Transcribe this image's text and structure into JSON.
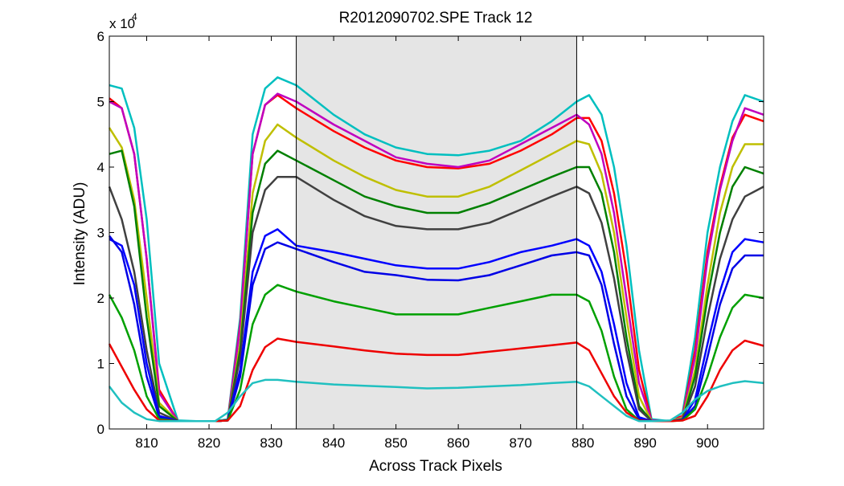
{
  "chart_data": {
    "type": "line",
    "title": "R2012090702.SPE   Track 12",
    "xlabel": "Across Track Pixels",
    "ylabel": "Intensity (ADU)",
    "y_multiplier_label": "x 10",
    "y_multiplier_exponent": "4",
    "xlim": [
      804,
      909
    ],
    "ylim": [
      0,
      60000
    ],
    "xticks": [
      810,
      820,
      830,
      840,
      850,
      860,
      870,
      880,
      890,
      900
    ],
    "yticks": [
      0,
      10000,
      20000,
      30000,
      40000,
      50000,
      60000
    ],
    "ytick_labels": [
      "0",
      "1",
      "2",
      "3",
      "4",
      "5",
      "6"
    ],
    "shaded_region": {
      "x_start": 834,
      "x_end": 879,
      "color": "#e5e5e5"
    },
    "grid": false,
    "legend": "none",
    "series": [
      {
        "color": "#00bfbf",
        "x": [
          804,
          806,
          808,
          810,
          812,
          815,
          818,
          821,
          823,
          825,
          827,
          829,
          831,
          834,
          840,
          845,
          850,
          855,
          860,
          865,
          870,
          875,
          879,
          881,
          883,
          885,
          887,
          889,
          891,
          894,
          896,
          898,
          900,
          902,
          904,
          906,
          909
        ],
        "y": [
          52500,
          52000,
          46000,
          32000,
          10000,
          1300,
          1200,
          1200,
          1500,
          17000,
          45000,
          52000,
          53700,
          52500,
          48000,
          45000,
          43000,
          42000,
          41800,
          42500,
          44000,
          47000,
          50000,
          51000,
          48000,
          40000,
          28000,
          12000,
          1500,
          1200,
          2500,
          14000,
          30000,
          40000,
          47000,
          51000,
          50000
        ]
      },
      {
        "color": "#ff0000",
        "x": [
          804,
          806,
          808,
          810,
          812,
          815,
          818,
          821,
          823,
          825,
          827,
          829,
          831,
          834,
          840,
          845,
          850,
          855,
          860,
          865,
          870,
          875,
          879,
          881,
          883,
          885,
          887,
          889,
          891,
          894,
          896,
          898,
          900,
          902,
          904,
          906,
          909
        ],
        "y": [
          50500,
          49000,
          42000,
          26000,
          6000,
          1200,
          1200,
          1200,
          1300,
          16000,
          42000,
          49500,
          51000,
          49000,
          45500,
          43000,
          41000,
          40000,
          39800,
          40500,
          42500,
          45000,
          47500,
          47500,
          44000,
          36000,
          24000,
          9000,
          1300,
          1200,
          2000,
          12000,
          27000,
          37000,
          44500,
          48000,
          47000
        ]
      },
      {
        "color": "#bf00bf",
        "x": [
          804,
          806,
          808,
          810,
          812,
          815,
          818,
          821,
          823,
          825,
          827,
          829,
          831,
          834,
          840,
          845,
          850,
          855,
          860,
          865,
          870,
          875,
          879,
          881,
          883,
          885,
          887,
          889,
          891,
          894,
          896,
          898,
          900,
          902,
          904,
          906,
          909
        ],
        "y": [
          50000,
          49000,
          42000,
          26000,
          5500,
          1200,
          1200,
          1200,
          1300,
          15500,
          42000,
          49500,
          51200,
          50000,
          46500,
          44000,
          41500,
          40500,
          40000,
          41000,
          43500,
          46000,
          48000,
          46500,
          42000,
          33000,
          20000,
          7000,
          1300,
          1200,
          1800,
          11000,
          26000,
          36500,
          44000,
          49000,
          48000
        ]
      },
      {
        "color": "#bfbf00",
        "x": [
          804,
          806,
          808,
          810,
          812,
          815,
          818,
          821,
          823,
          825,
          827,
          829,
          831,
          834,
          840,
          845,
          850,
          855,
          860,
          865,
          870,
          875,
          879,
          881,
          883,
          885,
          887,
          889,
          891,
          894,
          896,
          898,
          900,
          902,
          904,
          906,
          909
        ],
        "y": [
          46000,
          43000,
          35000,
          20000,
          4000,
          1200,
          1200,
          1200,
          1300,
          13000,
          36000,
          44000,
          46500,
          44500,
          41000,
          38500,
          36500,
          35500,
          35500,
          37000,
          39500,
          42000,
          44000,
          43500,
          39000,
          30000,
          17000,
          5000,
          1200,
          1200,
          1700,
          9000,
          22000,
          33000,
          40000,
          43500,
          43500
        ]
      },
      {
        "color": "#008000",
        "x": [
          804,
          806,
          808,
          810,
          812,
          815,
          818,
          821,
          823,
          825,
          827,
          829,
          831,
          834,
          840,
          845,
          850,
          855,
          860,
          865,
          870,
          875,
          879,
          881,
          883,
          885,
          887,
          889,
          891,
          894,
          896,
          898,
          900,
          902,
          904,
          906,
          909
        ],
        "y": [
          42000,
          42500,
          34000,
          17000,
          3500,
          1200,
          1200,
          1200,
          1300,
          12000,
          33000,
          40500,
          42500,
          41000,
          38000,
          35500,
          34000,
          33000,
          33000,
          34500,
          36500,
          38500,
          40000,
          40000,
          36000,
          27000,
          14000,
          3500,
          1200,
          1200,
          1500,
          8000,
          20000,
          30000,
          37000,
          40000,
          39000
        ]
      },
      {
        "color": "#404040",
        "x": [
          804,
          806,
          808,
          810,
          812,
          815,
          818,
          821,
          823,
          825,
          827,
          829,
          831,
          834,
          840,
          845,
          850,
          855,
          860,
          865,
          870,
          875,
          879,
          881,
          883,
          885,
          887,
          889,
          891,
          894,
          896,
          898,
          900,
          902,
          904,
          906,
          909
        ],
        "y": [
          37000,
          32000,
          24000,
          12000,
          2500,
          1200,
          1200,
          1200,
          1300,
          11000,
          30000,
          36500,
          38500,
          38500,
          35000,
          32500,
          31000,
          30500,
          30500,
          31500,
          33500,
          35500,
          37000,
          36000,
          31500,
          23000,
          12000,
          3000,
          1200,
          1200,
          1500,
          6500,
          17000,
          26000,
          32000,
          35500,
          37000
        ]
      },
      {
        "color": "#0000ff",
        "x": [
          804,
          806,
          808,
          810,
          812,
          815,
          818,
          821,
          823,
          825,
          827,
          829,
          831,
          834,
          840,
          845,
          850,
          855,
          860,
          865,
          870,
          875,
          879,
          881,
          883,
          885,
          887,
          889,
          891,
          894,
          896,
          898,
          900,
          902,
          904,
          906,
          909
        ],
        "y": [
          29000,
          28000,
          22000,
          10000,
          2000,
          1200,
          1200,
          1200,
          1300,
          9000,
          24000,
          29500,
          30500,
          28000,
          27000,
          26000,
          25000,
          24500,
          24500,
          25500,
          27000,
          28000,
          29000,
          28000,
          24000,
          16000,
          7000,
          1800,
          1200,
          1200,
          1400,
          4500,
          13000,
          21000,
          27000,
          29000,
          28500
        ]
      },
      {
        "color": "#0000e6",
        "x": [
          804,
          806,
          808,
          810,
          812,
          815,
          818,
          821,
          823,
          825,
          827,
          829,
          831,
          834,
          840,
          845,
          850,
          855,
          860,
          865,
          870,
          875,
          879,
          881,
          883,
          885,
          887,
          889,
          891,
          894,
          896,
          898,
          900,
          902,
          904,
          906,
          909
        ],
        "y": [
          29500,
          27000,
          19000,
          8000,
          1800,
          1200,
          1200,
          1200,
          1300,
          8000,
          22000,
          27500,
          28500,
          27500,
          25500,
          24000,
          23500,
          22800,
          22700,
          23500,
          25000,
          26500,
          27000,
          26500,
          22000,
          13000,
          5000,
          1500,
          1200,
          1200,
          1400,
          3500,
          11000,
          19000,
          24500,
          26500,
          26500
        ]
      },
      {
        "color": "#00a000",
        "x": [
          804,
          806,
          808,
          810,
          812,
          815,
          818,
          821,
          823,
          825,
          827,
          829,
          831,
          834,
          840,
          845,
          850,
          855,
          860,
          865,
          870,
          875,
          879,
          881,
          883,
          885,
          887,
          889,
          891,
          894,
          896,
          898,
          900,
          902,
          904,
          906,
          909
        ],
        "y": [
          20500,
          17000,
          12000,
          5000,
          1500,
          1200,
          1200,
          1200,
          1300,
          6000,
          16000,
          20500,
          22000,
          21000,
          19500,
          18500,
          17500,
          17500,
          17500,
          18500,
          19500,
          20500,
          20500,
          19500,
          15000,
          8000,
          3000,
          1300,
          1200,
          1200,
          1300,
          3000,
          8000,
          14000,
          18500,
          20500,
          20000
        ]
      },
      {
        "color": "#ee0000",
        "x": [
          804,
          806,
          808,
          810,
          812,
          815,
          818,
          821,
          823,
          825,
          827,
          829,
          831,
          834,
          840,
          845,
          850,
          855,
          860,
          865,
          870,
          875,
          879,
          881,
          883,
          885,
          887,
          889,
          891,
          894,
          896,
          898,
          900,
          902,
          904,
          906,
          909
        ],
        "y": [
          13000,
          9500,
          6000,
          3000,
          1300,
          1200,
          1200,
          1200,
          1300,
          3500,
          9000,
          12500,
          13800,
          13300,
          12600,
          12000,
          11500,
          11300,
          11300,
          11800,
          12300,
          12800,
          13200,
          12000,
          8500,
          5000,
          2500,
          1300,
          1200,
          1200,
          1300,
          2000,
          5000,
          9000,
          12000,
          13500,
          12700
        ]
      },
      {
        "color": "#20c0c0",
        "x": [
          804,
          806,
          808,
          810,
          812,
          815,
          818,
          821,
          823,
          825,
          827,
          829,
          831,
          834,
          840,
          845,
          850,
          855,
          860,
          865,
          870,
          875,
          879,
          881,
          883,
          885,
          887,
          889,
          891,
          894,
          896,
          898,
          900,
          902,
          904,
          906,
          909
        ],
        "y": [
          6500,
          4000,
          2500,
          1500,
          1200,
          1200,
          1200,
          1200,
          2500,
          5000,
          7000,
          7500,
          7500,
          7200,
          6800,
          6600,
          6400,
          6200,
          6300,
          6500,
          6700,
          7000,
          7200,
          6500,
          5000,
          3500,
          2000,
          1200,
          1200,
          1300,
          2500,
          4500,
          5800,
          6500,
          7000,
          7300,
          7000
        ]
      }
    ]
  }
}
